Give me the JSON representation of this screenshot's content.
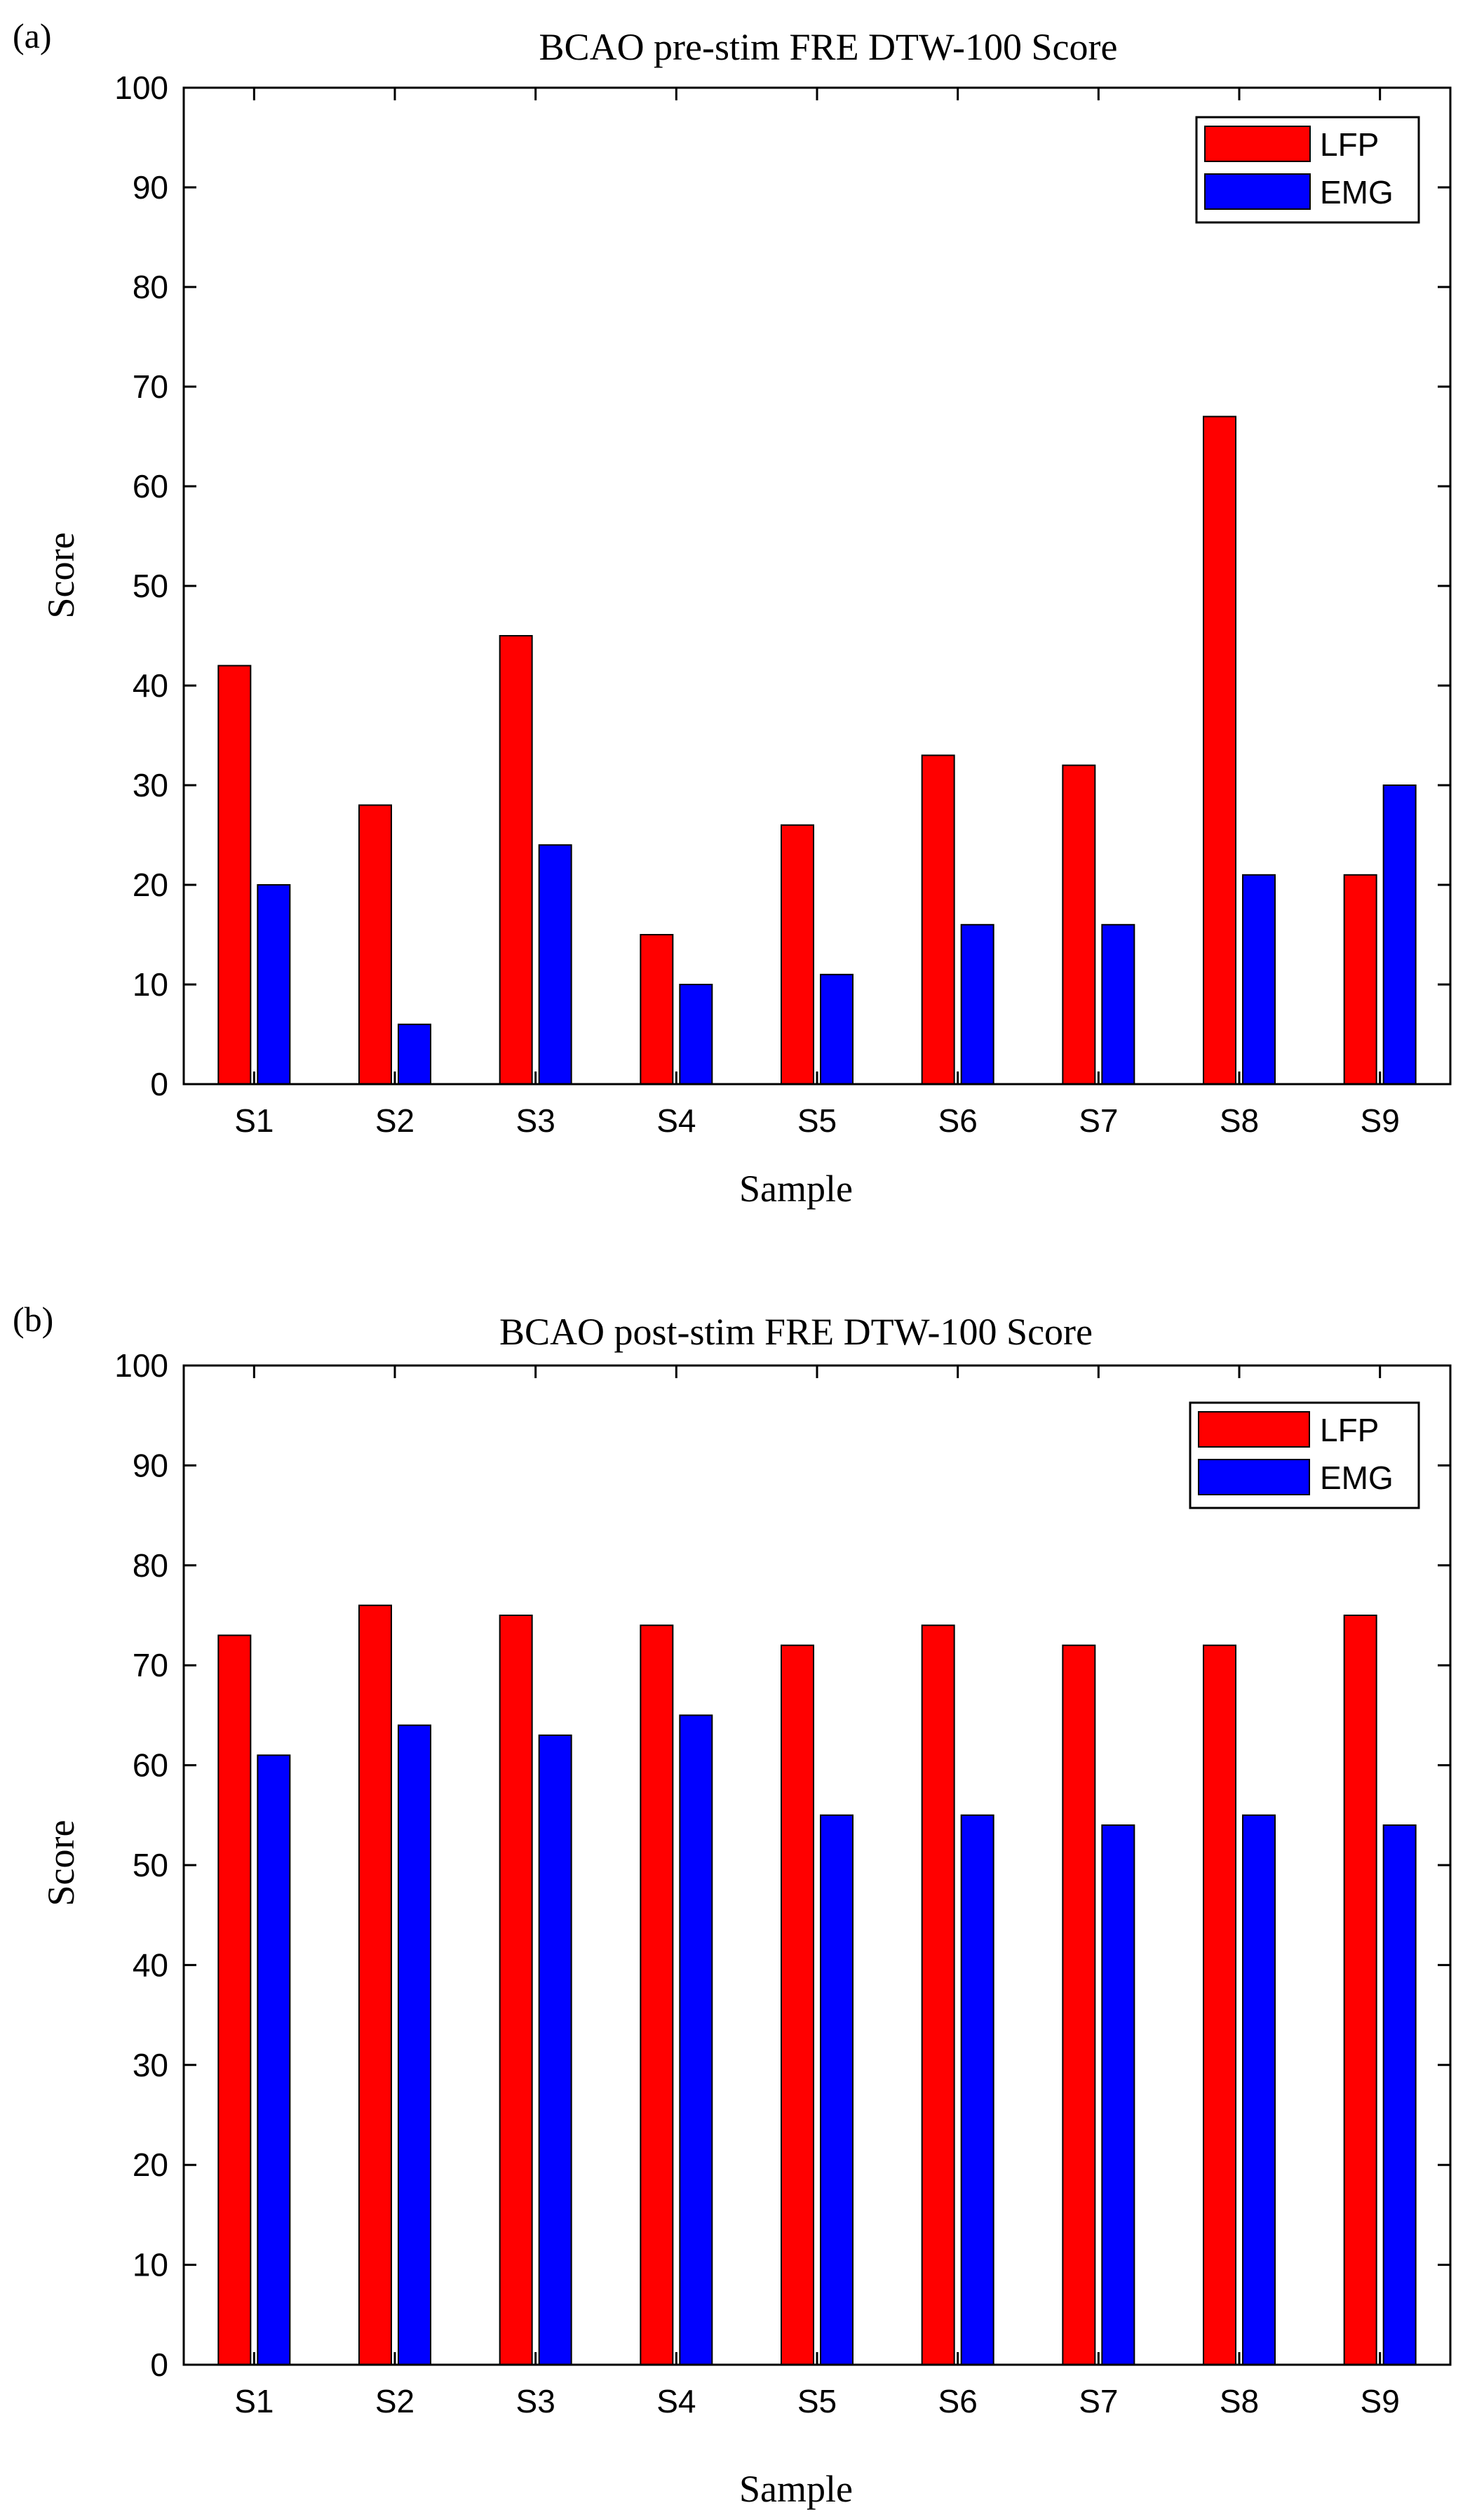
{
  "colors": {
    "lfp": "#ff0000",
    "emg": "#0000ff",
    "axis": "#000000"
  },
  "chart_data": [
    {
      "panel_label": "(a)",
      "type": "bar",
      "title": "BCAO pre-stim FRE DTW-100 Score",
      "xlabel": "Sample",
      "ylabel": "Score",
      "ylim": [
        0,
        100
      ],
      "yticks": [
        "0",
        "10",
        "20",
        "30",
        "40",
        "50",
        "60",
        "70",
        "80",
        "90",
        "100"
      ],
      "categories": [
        "S1",
        "S2",
        "S3",
        "S4",
        "S5",
        "S6",
        "S7",
        "S8",
        "S9"
      ],
      "legend_position": "top-right",
      "series": [
        {
          "name": "LFP",
          "values": [
            42,
            28,
            45,
            15,
            26,
            33,
            32,
            67,
            21
          ]
        },
        {
          "name": "EMG",
          "values": [
            20,
            6,
            24,
            10,
            11,
            16,
            16,
            21,
            30
          ]
        }
      ]
    },
    {
      "panel_label": "(b)",
      "type": "bar",
      "title": "BCAO post-stim FRE DTW-100 Score",
      "xlabel": "Sample",
      "ylabel": "Score",
      "ylim": [
        0,
        100
      ],
      "yticks": [
        "0",
        "10",
        "20",
        "30",
        "40",
        "50",
        "60",
        "70",
        "80",
        "90",
        "100"
      ],
      "categories": [
        "S1",
        "S2",
        "S3",
        "S4",
        "S5",
        "S6",
        "S7",
        "S8",
        "S9"
      ],
      "legend_position": "top-right",
      "series": [
        {
          "name": "LFP",
          "values": [
            73,
            76,
            75,
            74,
            72,
            74,
            72,
            72,
            75
          ]
        },
        {
          "name": "EMG",
          "values": [
            61,
            64,
            63,
            65,
            55,
            55,
            54,
            55,
            54
          ]
        }
      ]
    }
  ]
}
